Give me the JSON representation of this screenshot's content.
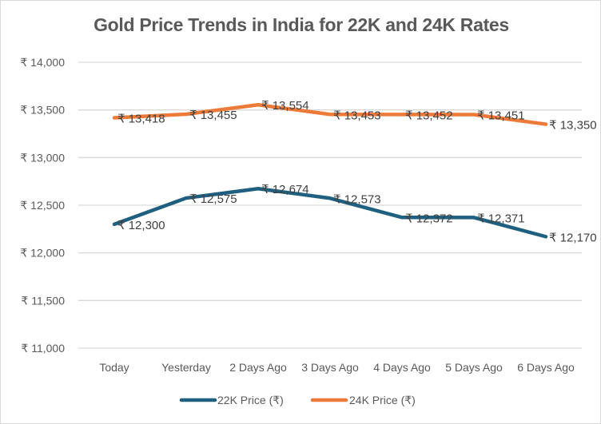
{
  "chart_data": {
    "type": "line",
    "title": "Gold Price Trends in India for 22K and 24K Rates",
    "xlabel": "",
    "ylabel": "",
    "categories": [
      "Today",
      "Yesterday",
      "2 Days Ago",
      "3 Days Ago",
      "4 Days Ago",
      "5 Days Ago",
      "6 Days Ago"
    ],
    "ylim": [
      11000,
      14000
    ],
    "yticks": [
      11000,
      11500,
      12000,
      12500,
      13000,
      13500,
      14000
    ],
    "ytick_labels": [
      "₹ 11,000",
      "₹ 11,500",
      "₹ 12,000",
      "₹ 12,500",
      "₹ 13,000",
      "₹ 13,500",
      "₹ 14,000"
    ],
    "grid": true,
    "legend_position": "bottom",
    "series": [
      {
        "name": "22K Price (₹)",
        "color": "#1f5f7f",
        "values": [
          12300,
          12575,
          12674,
          12573,
          12372,
          12371,
          12170
        ],
        "labels": [
          "₹ 12,300",
          "₹ 12,575",
          "₹ 12,674",
          "₹ 12,573",
          "₹ 12,372",
          "₹ 12,371",
          "₹ 12,170"
        ]
      },
      {
        "name": "24K Price (₹)",
        "color": "#ed7a38",
        "values": [
          13418,
          13455,
          13554,
          13453,
          13452,
          13451,
          13350
        ],
        "labels": [
          "₹ 13,418",
          "₹ 13,455",
          "₹ 13,554",
          "₹ 13,453",
          "₹ 13,452",
          "₹ 13,451",
          "₹ 13,350"
        ]
      }
    ],
    "gridline_color": "#d9d9d9",
    "text_color": "#595959"
  }
}
